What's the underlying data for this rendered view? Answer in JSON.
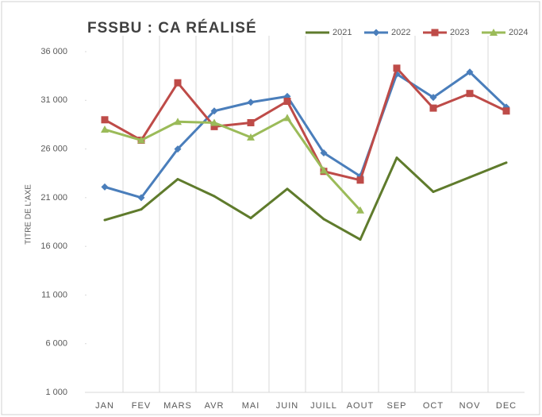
{
  "chart_data": {
    "type": "line",
    "title": "FSSBU : CA RÉALISÉ",
    "y_label": "TITRE DE L'AXE",
    "categories": [
      "JAN",
      "FEV",
      "MARS",
      "AVR",
      "MAI",
      "JUIN",
      "JUILL",
      "AOUT",
      "SEP",
      "OCT",
      "NOV",
      "DEC"
    ],
    "series": [
      {
        "name": "2021",
        "color": "#5f7b2c",
        "marker": "none",
        "values": [
          18700,
          19800,
          22900,
          21150,
          18900,
          21900,
          18800,
          16700,
          25100,
          21600,
          23100,
          24600
        ]
      },
      {
        "name": "2022",
        "color": "#4a7ebb",
        "marker": "diamond",
        "values": [
          22100,
          21000,
          26000,
          29900,
          30800,
          31400,
          25600,
          23200,
          33700,
          31300,
          33900,
          30300
        ]
      },
      {
        "name": "2023",
        "color": "#be4b48",
        "marker": "square",
        "values": [
          29000,
          26900,
          32800,
          28300,
          28700,
          30900,
          23700,
          22800,
          34300,
          30200,
          31700,
          29900
        ]
      },
      {
        "name": "2024",
        "color": "#9bbb59",
        "marker": "triangle",
        "values": [
          28000,
          26900,
          28800,
          28700,
          27200,
          29200,
          23800,
          19700,
          null,
          null,
          null,
          null
        ]
      }
    ],
    "ylim": [
      1000,
      36000
    ],
    "yticks": [
      {
        "value": 1000,
        "label": "1 000"
      },
      {
        "value": 6000,
        "label": "6 000"
      },
      {
        "value": 11000,
        "label": "11 000"
      },
      {
        "value": 16000,
        "label": "16 000"
      },
      {
        "value": 21000,
        "label": "21 000"
      },
      {
        "value": 26000,
        "label": "26 000"
      },
      {
        "value": 31000,
        "label": "31 000"
      },
      {
        "value": 36000,
        "label": "36 000"
      }
    ],
    "grid": true,
    "legend": "top-right"
  }
}
